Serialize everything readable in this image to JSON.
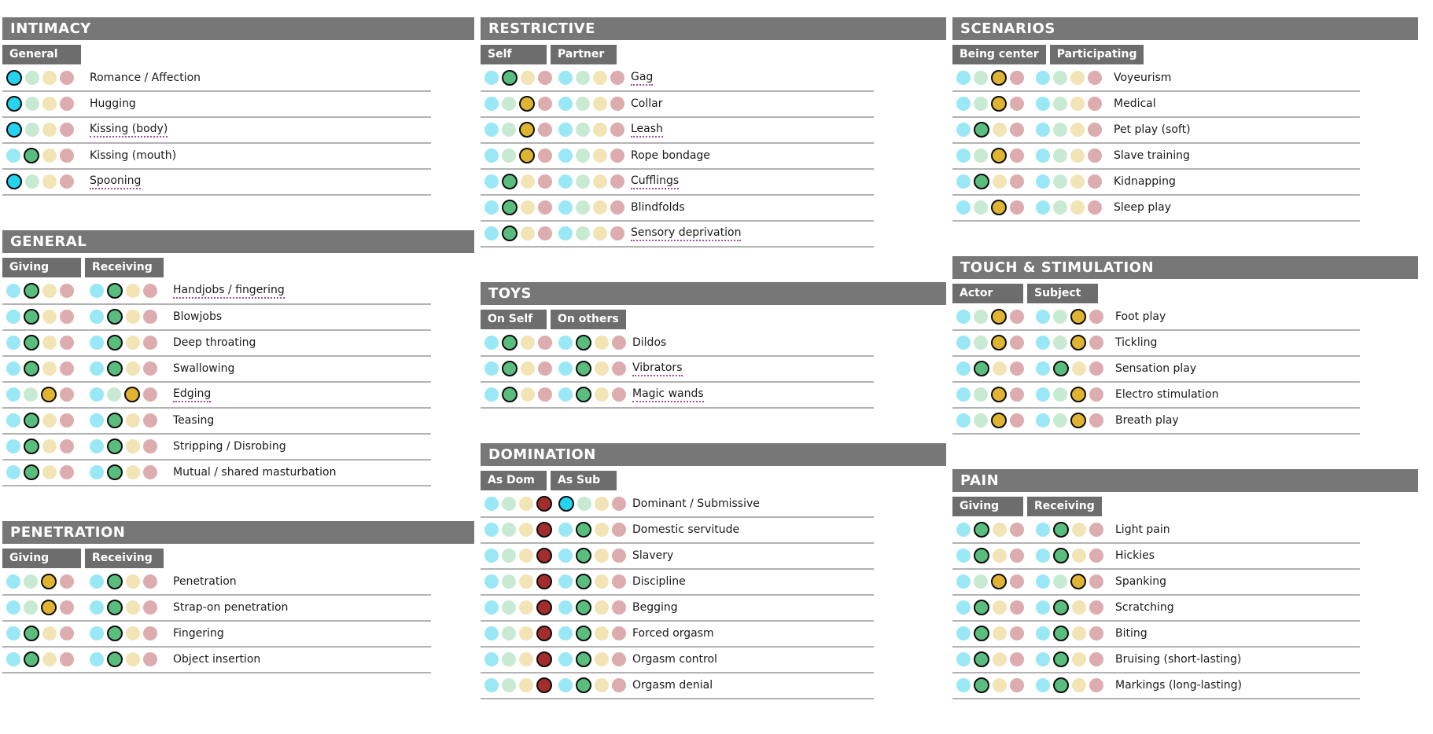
{
  "palette": {
    "header_bg": "#777777",
    "scope_bg": "#6d6d6d",
    "divider": "#b3b3b3",
    "link_underline": "#a04fa0",
    "selected_ring": "#0d0d0d"
  },
  "rating_levels": [
    {
      "id": "fav",
      "color_unselected": "#9AE8F5",
      "color_selected": "#24D4EF"
    },
    {
      "id": "like",
      "color_unselected": "#C9EAD2",
      "color_selected": "#58BD7D"
    },
    {
      "id": "maybe",
      "color_unselected": "#F2E4B5",
      "color_selected": "#DFB433"
    },
    {
      "id": "limit",
      "color_unselected": "#DCACAE",
      "color_selected": "#A32C2C"
    }
  ],
  "columns": [
    {
      "sections": [
        {
          "title": "INTIMACY",
          "scopes": [
            "General"
          ],
          "items": [
            {
              "label": "Romance / Affection",
              "link": false,
              "ratings": [
                "fav"
              ]
            },
            {
              "label": "Hugging",
              "link": false,
              "ratings": [
                "fav"
              ]
            },
            {
              "label": "Kissing (body)",
              "link": true,
              "ratings": [
                "fav"
              ]
            },
            {
              "label": "Kissing (mouth)",
              "link": false,
              "ratings": [
                "like"
              ]
            },
            {
              "label": "Spooning",
              "link": true,
              "ratings": [
                "fav"
              ]
            }
          ]
        },
        {
          "title": "GENERAL",
          "scopes": [
            "Giving",
            "Receiving"
          ],
          "items": [
            {
              "label": "Handjobs / fingering",
              "link": true,
              "ratings": [
                "like",
                "like"
              ]
            },
            {
              "label": "Blowjobs",
              "link": false,
              "ratings": [
                "like",
                "like"
              ]
            },
            {
              "label": "Deep throating",
              "link": false,
              "ratings": [
                "like",
                "like"
              ]
            },
            {
              "label": "Swallowing",
              "link": false,
              "ratings": [
                "like",
                "like"
              ]
            },
            {
              "label": "Edging",
              "link": true,
              "ratings": [
                "maybe",
                "maybe"
              ]
            },
            {
              "label": "Teasing",
              "link": false,
              "ratings": [
                "like",
                "like"
              ]
            },
            {
              "label": "Stripping / Disrobing",
              "link": false,
              "ratings": [
                "like",
                "like"
              ]
            },
            {
              "label": "Mutual / shared masturbation",
              "link": false,
              "ratings": [
                "like",
                "like"
              ]
            }
          ]
        },
        {
          "title": "PENETRATION",
          "scopes": [
            "Giving",
            "Receiving"
          ],
          "items": [
            {
              "label": "Penetration",
              "link": false,
              "ratings": [
                "maybe",
                "like"
              ]
            },
            {
              "label": "Strap-on penetration",
              "link": false,
              "ratings": [
                "maybe",
                "like"
              ]
            },
            {
              "label": "Fingering",
              "link": false,
              "ratings": [
                "like",
                "like"
              ]
            },
            {
              "label": "Object insertion",
              "link": false,
              "ratings": [
                "like",
                "like"
              ]
            }
          ]
        }
      ]
    },
    {
      "sections": [
        {
          "title": "RESTRICTIVE",
          "scopes": [
            "Self",
            "Partner"
          ],
          "items": [
            {
              "label": "Gag",
              "link": true,
              "ratings": [
                "like",
                null
              ]
            },
            {
              "label": "Collar",
              "link": false,
              "ratings": [
                "maybe",
                null
              ]
            },
            {
              "label": "Leash",
              "link": true,
              "ratings": [
                "maybe",
                null
              ]
            },
            {
              "label": "Rope bondage",
              "link": false,
              "ratings": [
                "maybe",
                null
              ]
            },
            {
              "label": "Cufflings",
              "link": true,
              "ratings": [
                "like",
                null
              ]
            },
            {
              "label": "Blindfolds",
              "link": false,
              "ratings": [
                "like",
                null
              ]
            },
            {
              "label": "Sensory deprivation",
              "link": true,
              "ratings": [
                "like",
                null
              ]
            }
          ]
        },
        {
          "title": "TOYS",
          "scopes": [
            "On Self",
            "On others"
          ],
          "items": [
            {
              "label": "Dildos",
              "link": false,
              "ratings": [
                "like",
                "like"
              ]
            },
            {
              "label": "Vibrators",
              "link": true,
              "ratings": [
                "like",
                "like"
              ]
            },
            {
              "label": "Magic wands",
              "link": true,
              "ratings": [
                "like",
                "like"
              ]
            }
          ]
        },
        {
          "title": "DOMINATION",
          "scopes": [
            "As Dom",
            "As Sub"
          ],
          "items": [
            {
              "label": "Dominant / Submissive",
              "link": false,
              "ratings": [
                "limit",
                "fav"
              ]
            },
            {
              "label": "Domestic servitude",
              "link": false,
              "ratings": [
                "limit",
                "like"
              ]
            },
            {
              "label": "Slavery",
              "link": false,
              "ratings": [
                "limit",
                "like"
              ]
            },
            {
              "label": "Discipline",
              "link": false,
              "ratings": [
                "limit",
                "like"
              ]
            },
            {
              "label": "Begging",
              "link": false,
              "ratings": [
                "limit",
                "like"
              ]
            },
            {
              "label": "Forced orgasm",
              "link": false,
              "ratings": [
                "limit",
                "like"
              ]
            },
            {
              "label": "Orgasm control",
              "link": false,
              "ratings": [
                "limit",
                "like"
              ]
            },
            {
              "label": "Orgasm denial",
              "link": false,
              "ratings": [
                "limit",
                "like"
              ]
            }
          ]
        }
      ]
    },
    {
      "sections": [
        {
          "title": "SCENARIOS",
          "scopes": [
            "Being center",
            "Participating"
          ],
          "items": [
            {
              "label": "Voyeurism",
              "link": false,
              "ratings": [
                "maybe",
                null
              ]
            },
            {
              "label": "Medical",
              "link": false,
              "ratings": [
                "maybe",
                null
              ]
            },
            {
              "label": "Pet play (soft)",
              "link": false,
              "ratings": [
                "like",
                null
              ]
            },
            {
              "label": "Slave training",
              "link": false,
              "ratings": [
                "maybe",
                null
              ]
            },
            {
              "label": "Kidnapping",
              "link": false,
              "ratings": [
                "like",
                null
              ]
            },
            {
              "label": "Sleep play",
              "link": false,
              "ratings": [
                "maybe",
                null
              ]
            }
          ]
        },
        {
          "title": "TOUCH & STIMULATION",
          "scopes": [
            "Actor",
            "Subject"
          ],
          "items": [
            {
              "label": "Foot play",
              "link": false,
              "ratings": [
                "maybe",
                "maybe"
              ]
            },
            {
              "label": "Tickling",
              "link": false,
              "ratings": [
                "maybe",
                "maybe"
              ]
            },
            {
              "label": "Sensation play",
              "link": false,
              "ratings": [
                "like",
                "like"
              ]
            },
            {
              "label": "Electro stimulation",
              "link": false,
              "ratings": [
                "maybe",
                "maybe"
              ]
            },
            {
              "label": "Breath play",
              "link": false,
              "ratings": [
                "maybe",
                "maybe"
              ]
            }
          ]
        },
        {
          "title": "PAIN",
          "scopes": [
            "Giving",
            "Receiving"
          ],
          "items": [
            {
              "label": "Light pain",
              "link": false,
              "ratings": [
                "like",
                "like"
              ]
            },
            {
              "label": "Hickies",
              "link": false,
              "ratings": [
                "like",
                "like"
              ]
            },
            {
              "label": "Spanking",
              "link": false,
              "ratings": [
                "maybe",
                "maybe"
              ]
            },
            {
              "label": "Scratching",
              "link": false,
              "ratings": [
                "like",
                "like"
              ]
            },
            {
              "label": "Biting",
              "link": false,
              "ratings": [
                "like",
                "like"
              ]
            },
            {
              "label": "Bruising (short-lasting)",
              "link": false,
              "ratings": [
                "like",
                "like"
              ]
            },
            {
              "label": "Markings (long-lasting)",
              "link": false,
              "ratings": [
                "like",
                "like"
              ]
            }
          ]
        }
      ]
    }
  ]
}
